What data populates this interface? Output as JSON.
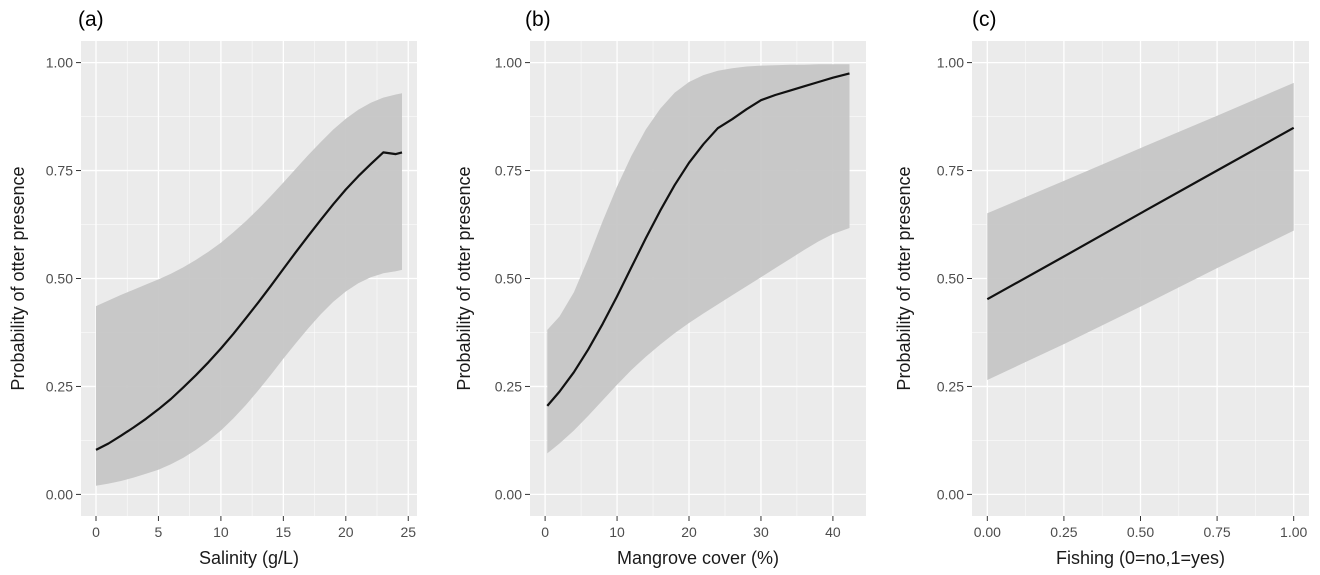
{
  "chart_data": [
    {
      "type": "line",
      "panel_label": "(a)",
      "xlabel": "Salinity (g/L)",
      "ylabel": "Probability of otter presence",
      "xlim": [
        -1.2,
        25.7
      ],
      "ylim": [
        -0.05,
        1.05
      ],
      "xticks": [
        0,
        5,
        10,
        15,
        20,
        25
      ],
      "xtick_labels": [
        "0",
        "5",
        "10",
        "15",
        "20",
        "25"
      ],
      "yticks": [
        0,
        0.25,
        0.5,
        0.75,
        1.0
      ],
      "ytick_labels": [
        "0.00",
        "0.25",
        "0.50",
        "0.75",
        "1.00"
      ],
      "grid": true,
      "series": [
        {
          "x": [
            0,
            1,
            2,
            3,
            4,
            5,
            6,
            7,
            8,
            9,
            10,
            11,
            12,
            13,
            14,
            15,
            16,
            17,
            18,
            19,
            20,
            21,
            22,
            23,
            24,
            24.5
          ],
          "values": [
            0.103,
            0.118,
            0.136,
            0.155,
            0.175,
            0.197,
            0.221,
            0.248,
            0.276,
            0.306,
            0.338,
            0.372,
            0.408,
            0.445,
            0.483,
            0.522,
            0.561,
            0.599,
            0.636,
            0.672,
            0.706,
            0.737,
            0.765,
            0.792,
            0.788,
            0.792
          ],
          "lower": [
            0.02,
            0.025,
            0.031,
            0.039,
            0.048,
            0.057,
            0.07,
            0.085,
            0.103,
            0.124,
            0.148,
            0.176,
            0.207,
            0.241,
            0.277,
            0.314,
            0.35,
            0.385,
            0.417,
            0.446,
            0.47,
            0.489,
            0.503,
            0.512,
            0.517,
            0.52
          ],
          "upper": [
            0.436,
            0.449,
            0.462,
            0.474,
            0.486,
            0.498,
            0.511,
            0.526,
            0.543,
            0.562,
            0.583,
            0.607,
            0.633,
            0.661,
            0.691,
            0.722,
            0.754,
            0.786,
            0.816,
            0.845,
            0.87,
            0.891,
            0.907,
            0.919,
            0.926,
            0.929
          ]
        }
      ]
    },
    {
      "type": "line",
      "panel_label": "(b)",
      "xlabel": "Mangrove cover (%)",
      "ylabel": "Probability of otter presence",
      "xlim": [
        -2.1,
        44.6
      ],
      "ylim": [
        -0.05,
        1.05
      ],
      "xticks": [
        0,
        10,
        20,
        30,
        40
      ],
      "xtick_labels": [
        "0",
        "10",
        "20",
        "30",
        "40"
      ],
      "yticks": [
        0,
        0.25,
        0.5,
        0.75,
        1.0
      ],
      "ytick_labels": [
        "0.00",
        "0.25",
        "0.50",
        "0.75",
        "1.00"
      ],
      "grid": true,
      "series": [
        {
          "x": [
            0.3,
            2,
            4,
            6,
            8,
            10,
            12,
            14,
            16,
            18,
            20,
            22,
            24,
            26,
            28,
            30,
            32,
            34,
            36,
            38,
            40,
            42.3
          ],
          "values": [
            0.205,
            0.238,
            0.283,
            0.336,
            0.395,
            0.459,
            0.526,
            0.593,
            0.657,
            0.716,
            0.768,
            0.811,
            0.848,
            0.869,
            0.892,
            0.913,
            0.925,
            0.935,
            0.945,
            0.955,
            0.965,
            0.975
          ],
          "lower": [
            0.095,
            0.118,
            0.148,
            0.182,
            0.218,
            0.254,
            0.288,
            0.319,
            0.347,
            0.373,
            0.397,
            0.419,
            0.44,
            0.461,
            0.482,
            0.503,
            0.524,
            0.545,
            0.566,
            0.586,
            0.603,
            0.617
          ],
          "upper": [
            0.381,
            0.412,
            0.468,
            0.547,
            0.633,
            0.713,
            0.784,
            0.845,
            0.893,
            0.93,
            0.955,
            0.971,
            0.981,
            0.987,
            0.991,
            0.993,
            0.994,
            0.995,
            0.995,
            0.996,
            0.996,
            0.996
          ]
        }
      ]
    },
    {
      "type": "line",
      "panel_label": "(c)",
      "xlabel": "Fishing (0=no,1=yes)",
      "ylabel": "Probability of otter presence",
      "xlim": [
        -0.05,
        1.05
      ],
      "ylim": [
        -0.05,
        1.05
      ],
      "xticks": [
        0,
        0.25,
        0.5,
        0.75,
        1.0
      ],
      "xtick_labels": [
        "0.00",
        "0.25",
        "0.50",
        "0.75",
        "1.00"
      ],
      "yticks": [
        0,
        0.25,
        0.5,
        0.75,
        1.0
      ],
      "ytick_labels": [
        "0.00",
        "0.25",
        "0.50",
        "0.75",
        "1.00"
      ],
      "grid": true,
      "series": [
        {
          "x": [
            0,
            0.25,
            0.5,
            0.75,
            1.0
          ],
          "values": [
            0.452,
            0.551,
            0.651,
            0.75,
            0.849
          ],
          "lower": [
            0.265,
            0.348,
            0.435,
            0.524,
            0.611
          ],
          "upper": [
            0.651,
            0.726,
            0.802,
            0.877,
            0.953
          ]
        }
      ]
    }
  ],
  "colors": {
    "panel_background": "#ebebeb",
    "grid_major": "#ffffff",
    "ribbon": "#c6c6c6",
    "line": "#111111",
    "tick_text": "#4d4d4d",
    "label_text": "#1a1a1a"
  }
}
